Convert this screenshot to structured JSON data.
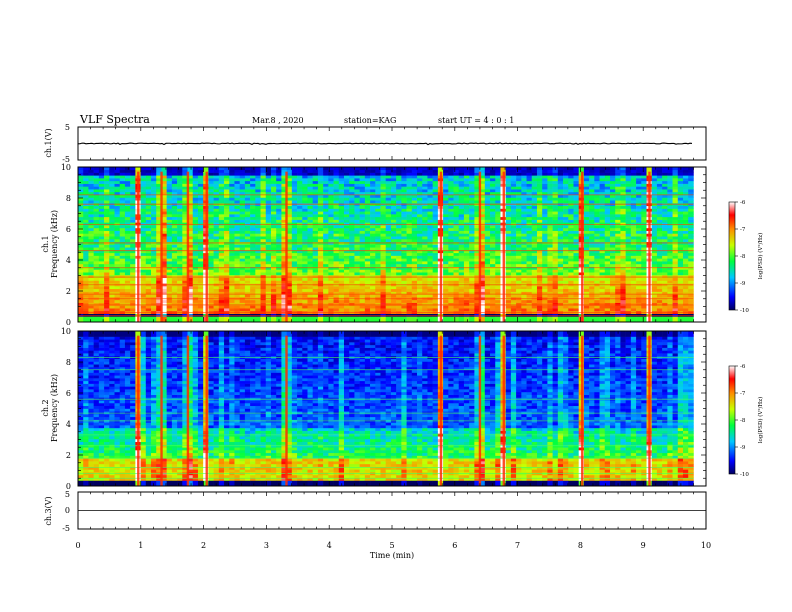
{
  "header": {
    "title": "VLF Spectra",
    "date": "Mar.8 , 2020",
    "station": "station=KAG",
    "start": "start UT =  4 : 0 : 1"
  },
  "chart_data": {
    "type": "heatmap",
    "x": {
      "label": "Time (min)",
      "range": [
        0,
        10
      ],
      "ticks": [
        0,
        1,
        2,
        3,
        4,
        5,
        6,
        7,
        8,
        9,
        10
      ]
    },
    "panels": [
      {
        "id": "ch1-waveform",
        "type": "line",
        "ylabel": "ch.1(V)",
        "ylim": [
          -5,
          5
        ],
        "yticks": [
          "5",
          "-5"
        ],
        "level_v": 0,
        "data_end_min": 9.8
      },
      {
        "id": "ch1-spectrogram",
        "type": "heatmap",
        "ylabel_top": "ch.1",
        "ylabel": "Frequency (kHz)",
        "ylim": [
          0,
          10
        ],
        "yticks": [
          "0",
          "2",
          "4",
          "6",
          "8",
          "10"
        ],
        "data_end_min": 9.8,
        "z_range": [
          -10,
          -6
        ],
        "colorbar_ticks": [
          "-6",
          "-7",
          "-8",
          "-9",
          "-10"
        ],
        "colorbar_label": "log(PSD) (V²/Hz)",
        "bright_events_min": [
          0.96,
          1.33,
          1.75,
          2.05,
          3.32,
          5.78,
          6.4,
          6.78,
          8.03,
          9.1
        ]
      },
      {
        "id": "ch2-spectrogram",
        "type": "heatmap",
        "ylabel_top": "ch.2",
        "ylabel": "Frequency (kHz)",
        "ylim": [
          0,
          10
        ],
        "yticks": [
          "0",
          "2",
          "4",
          "6",
          "8",
          "10"
        ],
        "data_end_min": 9.8,
        "z_range": [
          -10,
          -6
        ],
        "colorbar_ticks": [
          "-6",
          "-7",
          "-8",
          "-9",
          "-10"
        ],
        "colorbar_label": "log(PSD) (V²/Hz)",
        "bright_events_min": [
          0.96,
          1.33,
          1.75,
          2.05,
          3.32,
          5.78,
          6.4,
          6.78,
          8.03,
          9.1
        ]
      },
      {
        "id": "ch3-waveform",
        "type": "line",
        "ylabel": "ch.3(V)",
        "ylim": [
          -5,
          5
        ],
        "yticks": [
          "5",
          "0",
          "-5"
        ],
        "level_v": 0
      }
    ]
  }
}
